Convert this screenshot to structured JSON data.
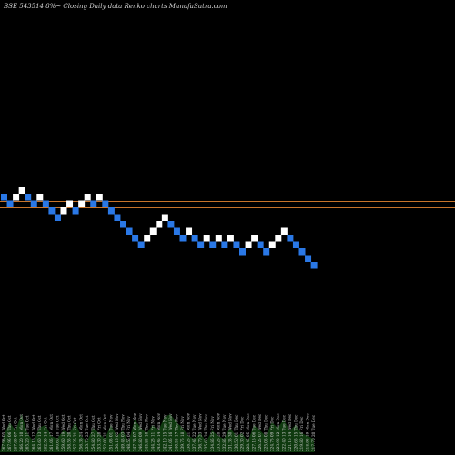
{
  "title": "BSE 543514  8%~  Closing Daily data  Renko  charts MunafaSutra.com",
  "chart_data": {
    "type": "renko",
    "source": "MunafaSutra.com",
    "symbol": "BSE 543514",
    "box_pct": "8%",
    "colors": {
      "up": "#ffffff",
      "down": "#2a78e6",
      "hline": "#c8742a",
      "volume": "#0f3a0f",
      "background": "#000000"
    },
    "horizontal_lines": [
      1,
      2
    ],
    "bricks": [
      {
        "d": "down",
        "l": 0
      },
      {
        "d": "down",
        "l": 1
      },
      {
        "d": "up",
        "l": 0
      },
      {
        "d": "up",
        "l": -1
      },
      {
        "d": "down",
        "l": 0
      },
      {
        "d": "down",
        "l": 1
      },
      {
        "d": "up",
        "l": 0
      },
      {
        "d": "down",
        "l": 1
      },
      {
        "d": "down",
        "l": 2
      },
      {
        "d": "down",
        "l": 3
      },
      {
        "d": "up",
        "l": 2
      },
      {
        "d": "up",
        "l": 1
      },
      {
        "d": "down",
        "l": 2
      },
      {
        "d": "up",
        "l": 1
      },
      {
        "d": "up",
        "l": 0
      },
      {
        "d": "down",
        "l": 1
      },
      {
        "d": "up",
        "l": 0
      },
      {
        "d": "down",
        "l": 1
      },
      {
        "d": "down",
        "l": 2
      },
      {
        "d": "down",
        "l": 3
      },
      {
        "d": "down",
        "l": 4
      },
      {
        "d": "down",
        "l": 5
      },
      {
        "d": "down",
        "l": 6
      },
      {
        "d": "down",
        "l": 7
      },
      {
        "d": "up",
        "l": 6
      },
      {
        "d": "up",
        "l": 5
      },
      {
        "d": "up",
        "l": 4
      },
      {
        "d": "up",
        "l": 3
      },
      {
        "d": "down",
        "l": 4
      },
      {
        "d": "down",
        "l": 5
      },
      {
        "d": "down",
        "l": 6
      },
      {
        "d": "up",
        "l": 5
      },
      {
        "d": "down",
        "l": 6
      },
      {
        "d": "down",
        "l": 7
      },
      {
        "d": "up",
        "l": 6
      },
      {
        "d": "down",
        "l": 7
      },
      {
        "d": "up",
        "l": 6
      },
      {
        "d": "down",
        "l": 7
      },
      {
        "d": "up",
        "l": 6
      },
      {
        "d": "down",
        "l": 7
      },
      {
        "d": "down",
        "l": 8
      },
      {
        "d": "up",
        "l": 7
      },
      {
        "d": "up",
        "l": 6
      },
      {
        "d": "down",
        "l": 7
      },
      {
        "d": "down",
        "l": 8
      },
      {
        "d": "up",
        "l": 7
      },
      {
        "d": "up",
        "l": 6
      },
      {
        "d": "up",
        "l": 5
      },
      {
        "d": "down",
        "l": 6
      },
      {
        "d": "down",
        "l": 7
      },
      {
        "d": "down",
        "l": 8
      },
      {
        "d": "down",
        "l": 9
      },
      {
        "d": "down",
        "l": 10
      }
    ],
    "volume_labels": [
      "267.95 05 Wed Oct",
      "267.95 06 Thu Oct",
      "267.85 07 Fri Oct",
      "266.20 10 Mon Oct",
      "265.20 11 Tue Oct",
      "264.15 12 Wed Oct",
      "263.60 13 Thu Oct",
      "262.55 14 Fri Oct",
      "261.05 17 Mon Oct",
      "260.60 18 Tue Oct",
      "259.60 19 Wed Oct",
      "258.55 20 Thu Oct",
      "257.25 21 Fri Oct",
      "256.35 24 Mon Oct",
      "255.70 25 Tue Oct",
      "254.80 27 Thu Oct",
      "253.30 28 Fri Oct",
      "252.00 31 Mon Oct",
      "251.05 01 Tue Nov",
      "250.15 02 Wed Nov",
      "249.45 03 Thu Nov",
      "248.55 04 Fri Nov",
      "247.35 07 Mon Nov",
      "246.80 09 Wed Nov",
      "245.85 10 Thu Nov",
      "244.25 11 Fri Nov",
      "243.45 14 Mon Nov",
      "242.10 15 Tue Nov",
      "241.05 16 Wed Nov",
      "240.55 17 Thu Nov",
      "239.75 18 Fri Nov",
      "238.25 21 Mon Nov",
      "237.45 22 Tue Nov",
      "236.70 23 Wed Nov",
      "235.60 24 Thu Nov",
      "234.85 25 Fri Nov",
      "233.25 28 Mon Nov",
      "232.85 29 Tue Nov",
      "231.35 30 Wed Nov",
      "230.50 01 Thu Dec",
      "229.30 02 Fri Dec",
      "228.45 05 Mon Dec",
      "227.15 06 Tue Dec",
      "226.25 07 Wed Dec",
      "225.05 08 Thu Dec",
      "224.75 09 Fri Dec",
      "223.90 12 Mon Dec",
      "222.40 13 Tue Dec",
      "221.15 14 Wed Dec",
      "220.65 15 Thu Dec",
      "219.80 16 Fri Dec",
      "218.95 19 Mon Dec",
      "217.70 20 Tue Dec"
    ],
    "volume_levels": [
      0.3,
      0.55,
      0.4,
      0.7,
      0.35,
      0.2,
      0.45,
      0.5,
      0.3,
      0.25,
      0.4,
      0.35,
      0.55,
      0.3,
      0.2,
      0.45,
      0.35,
      0.25,
      0.5,
      0.3,
      0.4,
      0.2,
      0.6,
      0.45,
      0.35,
      0.5,
      0.4,
      0.65,
      0.7,
      0.55,
      0.45,
      0.3,
      0.25,
      0.35,
      0.2,
      0.4,
      0.3,
      0.25,
      0.45,
      0.3,
      0.35,
      0.2,
      0.5,
      0.4,
      0.3,
      0.55,
      0.45,
      0.6,
      0.4,
      0.5,
      0.35,
      0.3,
      0.25
    ]
  }
}
